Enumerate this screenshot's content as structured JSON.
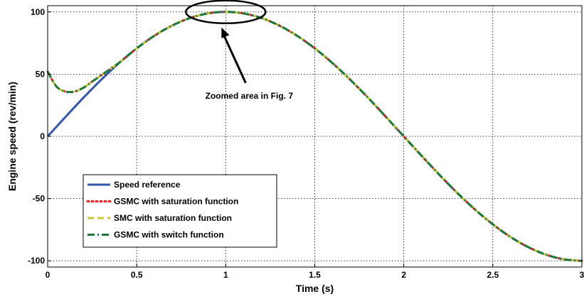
{
  "chart_data": {
    "type": "line",
    "xlabel": "Time (s)",
    "ylabel": "Engine speed (rev/min)",
    "xlim": [
      0,
      3
    ],
    "ylim": [
      -105,
      105
    ],
    "grid": true,
    "xticks": [
      0,
      0.5,
      1,
      1.5,
      2,
      2.5,
      3
    ],
    "xtick_labels": [
      "0",
      "0.5",
      "1",
      "1.5",
      "2",
      "2.5",
      "3"
    ],
    "yticks": [
      -100,
      -50,
      0,
      50,
      100
    ],
    "ytick_labels": [
      "-100",
      "-50",
      "0",
      "50",
      "100"
    ],
    "legend_position": "lower-left",
    "series": [
      {
        "name": "Speed reference",
        "color": "#3355aa",
        "style": "solid",
        "x": [
          0,
          0.1,
          0.2,
          0.3,
          0.4,
          0.5,
          0.6,
          0.7,
          0.8,
          0.9,
          1.0,
          1.1,
          1.2,
          1.3,
          1.4,
          1.5,
          1.6,
          1.7,
          1.8,
          1.9,
          2.0,
          2.1,
          2.2,
          2.3,
          2.4,
          2.5,
          2.6,
          2.7,
          2.8,
          2.9,
          3.0
        ],
        "y": [
          0,
          15.6,
          30.9,
          45.4,
          58.8,
          70.7,
          80.9,
          89.1,
          95.1,
          98.8,
          100,
          98.8,
          95.1,
          89.1,
          80.9,
          70.7,
          58.8,
          45.4,
          30.9,
          15.6,
          0,
          -15.6,
          -30.9,
          -45.4,
          -58.8,
          -70.7,
          -80.9,
          -89.1,
          -95.1,
          -98.8,
          -100
        ]
      },
      {
        "name": "GSMC with saturation function",
        "color": "#e02020",
        "style": "dotted",
        "x": [
          0,
          0.05,
          0.1,
          0.15,
          0.2,
          0.25,
          0.3,
          0.4,
          0.5,
          0.6,
          0.7,
          0.8,
          0.9,
          1.0,
          1.1,
          1.2,
          1.3,
          1.4,
          1.5,
          1.6,
          1.7,
          1.8,
          1.9,
          2.0,
          2.1,
          2.2,
          2.3,
          2.4,
          2.5,
          2.6,
          2.7,
          2.8,
          2.9,
          3.0
        ],
        "y": [
          52,
          40,
          36,
          36,
          39,
          44,
          49,
          59,
          70.7,
          80.9,
          89.1,
          95.1,
          98.8,
          100,
          98.8,
          95.1,
          89.1,
          80.9,
          70.7,
          58.8,
          45.4,
          30.9,
          15.6,
          0,
          -15.6,
          -30.9,
          -45.4,
          -58.8,
          -70.7,
          -80.9,
          -89.1,
          -95.1,
          -98.8,
          -100
        ]
      },
      {
        "name": "SMC with saturation function",
        "color": "#c8c83a",
        "style": "dashed",
        "x": [
          0,
          0.05,
          0.1,
          0.15,
          0.2,
          0.25,
          0.3,
          0.4,
          0.5,
          0.6,
          0.7,
          0.8,
          0.9,
          1.0,
          1.1,
          1.2,
          1.3,
          1.4,
          1.5,
          1.6,
          1.7,
          1.8,
          1.9,
          2.0,
          2.1,
          2.2,
          2.3,
          2.4,
          2.5,
          2.6,
          2.7,
          2.8,
          2.9,
          3.0
        ],
        "y": [
          52,
          40,
          36,
          36,
          39,
          44,
          49,
          59,
          70.7,
          80.9,
          89.1,
          95.1,
          98.8,
          100,
          98.8,
          95.1,
          89.1,
          80.9,
          70.7,
          58.8,
          45.4,
          30.9,
          15.6,
          0,
          -15.6,
          -30.9,
          -45.4,
          -58.8,
          -70.7,
          -80.9,
          -89.1,
          -95.1,
          -98.8,
          -100
        ]
      },
      {
        "name": "GSMC with switch function",
        "color": "#1e7a3c",
        "style": "dashdot",
        "x": [
          0,
          0.05,
          0.1,
          0.15,
          0.2,
          0.25,
          0.3,
          0.4,
          0.5,
          0.6,
          0.7,
          0.8,
          0.9,
          1.0,
          1.1,
          1.2,
          1.3,
          1.4,
          1.5,
          1.6,
          1.7,
          1.8,
          1.9,
          2.0,
          2.1,
          2.2,
          2.3,
          2.4,
          2.5,
          2.6,
          2.7,
          2.8,
          2.9,
          3.0
        ],
        "y": [
          52,
          40,
          36,
          36,
          39,
          44,
          49,
          59,
          70.7,
          80.9,
          89.1,
          95.1,
          98.8,
          100,
          98.8,
          95.1,
          89.1,
          80.9,
          70.7,
          58.8,
          45.4,
          30.9,
          15.6,
          0,
          -15.6,
          -30.9,
          -45.4,
          -58.8,
          -70.7,
          -80.9,
          -89.1,
          -95.1,
          -98.8,
          -100
        ]
      }
    ],
    "annotations": [
      {
        "text": "Zoomed area in Fig. 7",
        "target_x": 1.0,
        "target_y": 100
      }
    ]
  }
}
